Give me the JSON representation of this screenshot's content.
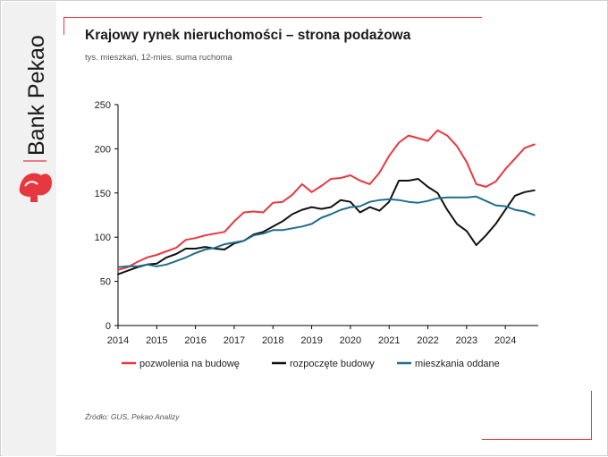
{
  "brand": {
    "name": "Bank Pekao",
    "accent_color": "#e8383f",
    "logo_icon": "pekao-bison-icon"
  },
  "header": {
    "title": "Krajowy rynek nieruchomości – strona podażowa",
    "subtitle": "tys. mieszkań, 12-mies. suma ruchoma"
  },
  "footer": {
    "source": "Źródło: GUS, Pekao Analizy"
  },
  "chart_data": {
    "type": "line",
    "ylim": [
      0,
      250
    ],
    "yticks": [
      0,
      50,
      100,
      150,
      200,
      250
    ],
    "xlim": [
      2014,
      2024.85
    ],
    "xticks": [
      "2014",
      "2015",
      "2016",
      "2017",
      "2018",
      "2019",
      "2020",
      "2021",
      "2022",
      "2023",
      "2024"
    ],
    "grid": false,
    "legend_position": "bottom",
    "x": [
      2014.0,
      2014.25,
      2014.5,
      2014.75,
      2015.0,
      2015.25,
      2015.5,
      2015.75,
      2016.0,
      2016.25,
      2016.5,
      2016.75,
      2017.0,
      2017.25,
      2017.5,
      2017.75,
      2018.0,
      2018.25,
      2018.5,
      2018.75,
      2019.0,
      2019.25,
      2019.5,
      2019.75,
      2020.0,
      2020.25,
      2020.5,
      2020.75,
      2021.0,
      2021.25,
      2021.5,
      2021.75,
      2022.0,
      2022.25,
      2022.5,
      2022.75,
      2023.0,
      2023.25,
      2023.5,
      2023.75,
      2024.0,
      2024.25,
      2024.5,
      2024.75
    ],
    "series": [
      {
        "name": "pozwolenia na budowę",
        "color": "#e8383f",
        "values": [
          63,
          66,
          72,
          77,
          80,
          84,
          88,
          97,
          99,
          102,
          104,
          106,
          118,
          128,
          129,
          128,
          139,
          140,
          148,
          160,
          151,
          158,
          166,
          167,
          170,
          164,
          160,
          173,
          192,
          207,
          215,
          212,
          209,
          221,
          215,
          203,
          185,
          160,
          157,
          163,
          177,
          189,
          201,
          205
        ]
      },
      {
        "name": "rozpoczęte budowy",
        "color": "#111111",
        "values": [
          58,
          62,
          66,
          69,
          70,
          77,
          81,
          87,
          87,
          89,
          87,
          86,
          93,
          96,
          103,
          106,
          112,
          118,
          126,
          131,
          134,
          132,
          134,
          142,
          140,
          128,
          134,
          130,
          140,
          164,
          164,
          166,
          157,
          150,
          131,
          115,
          107,
          91,
          102,
          115,
          131,
          147,
          151,
          153
        ]
      },
      {
        "name": "mieszkania oddane",
        "color": "#1f6e8c",
        "values": [
          66,
          67,
          67,
          69,
          67,
          69,
          73,
          77,
          82,
          86,
          88,
          92,
          94,
          96,
          102,
          104,
          108,
          108,
          110,
          112,
          115,
          122,
          126,
          131,
          134,
          135,
          140,
          142,
          143,
          142,
          140,
          139,
          141,
          144,
          145,
          145,
          145,
          146,
          141,
          136,
          135,
          131,
          129,
          125
        ]
      }
    ]
  }
}
